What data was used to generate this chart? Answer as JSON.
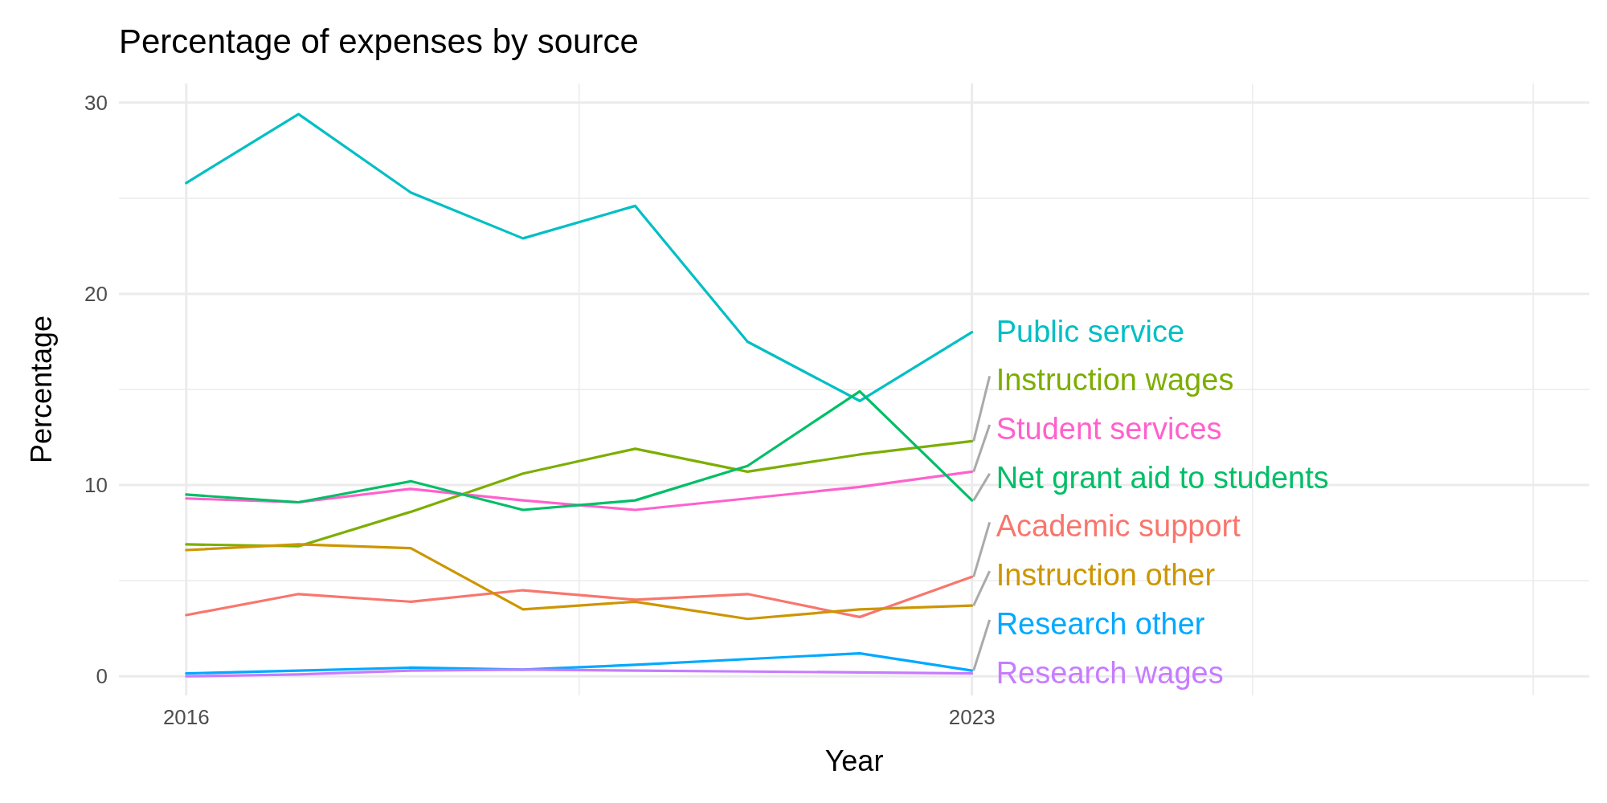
{
  "chart_data": {
    "type": "line",
    "title": "Percentage of expenses by source",
    "xlabel": "Year",
    "ylabel": "Percentage",
    "x": [
      2016,
      2017,
      2018,
      2019,
      2020,
      2021,
      2022,
      2023
    ],
    "xlim": [
      2015.4,
      2028.5
    ],
    "xticks": [
      2016,
      {
        "value": 2019.5,
        "label": null
      },
      2023,
      {
        "value": 2025.5,
        "label": null
      },
      {
        "value": 2028,
        "label": null
      }
    ],
    "ylim": [
      -1,
      31
    ],
    "yticks": [
      0,
      {
        "value": 5,
        "label": null
      },
      10,
      {
        "value": 15,
        "label": null
      },
      20,
      {
        "value": 25,
        "label": null
      },
      30
    ],
    "grid": true,
    "line_style": "solid",
    "marker": "none",
    "series": [
      {
        "name": "Public service",
        "color": "#00bfc4",
        "values": [
          25.8,
          29.4,
          25.3,
          22.9,
          24.6,
          17.5,
          14.4,
          18.0
        ]
      },
      {
        "name": "Instruction wages",
        "color": "#7cae00",
        "values": [
          6.9,
          6.8,
          8.6,
          10.6,
          11.9,
          10.7,
          11.6,
          12.3
        ]
      },
      {
        "name": "Student services",
        "color": "#ff61cc",
        "values": [
          9.3,
          9.1,
          9.8,
          9.2,
          8.7,
          9.3,
          9.9,
          10.7
        ]
      },
      {
        "name": "Net grant aid to students",
        "color": "#00be67",
        "values": [
          9.5,
          9.1,
          10.2,
          8.7,
          9.2,
          11.0,
          14.9,
          9.2
        ]
      },
      {
        "name": "Academic support",
        "color": "#f8766d",
        "values": [
          3.2,
          4.3,
          3.9,
          4.5,
          4.0,
          4.3,
          3.1,
          5.2
        ]
      },
      {
        "name": "Instruction other",
        "color": "#cd9600",
        "values": [
          6.6,
          6.9,
          6.7,
          3.5,
          3.9,
          3.0,
          3.5,
          3.7
        ]
      },
      {
        "name": "Research other",
        "color": "#00a9ff",
        "values": [
          0.15,
          0.3,
          0.45,
          0.35,
          0.6,
          0.9,
          1.2,
          0.3
        ]
      },
      {
        "name": "Research wages",
        "color": "#c77cff",
        "values": [
          0.0,
          0.1,
          0.3,
          0.35,
          0.3,
          0.25,
          0.2,
          0.15
        ]
      }
    ]
  }
}
